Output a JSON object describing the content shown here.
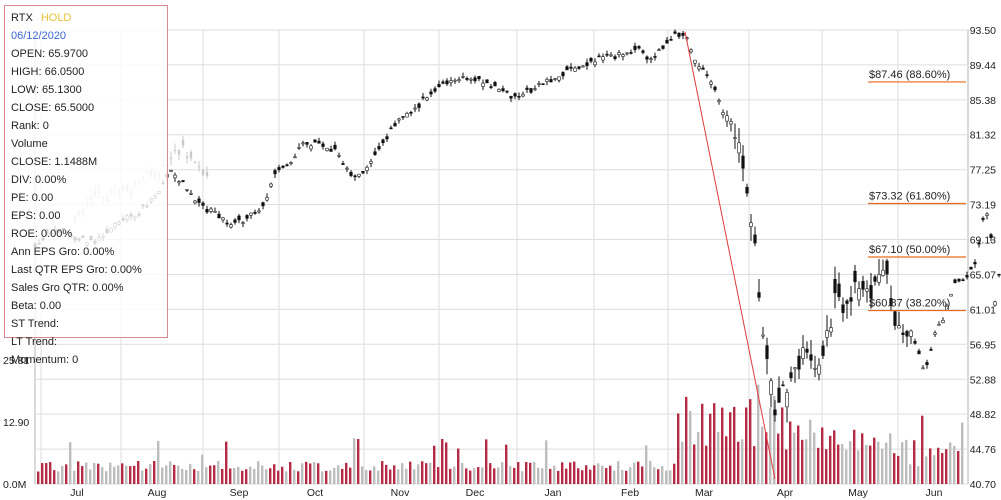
{
  "info_panel": {
    "symbol": "RTX",
    "rating": "HOLD",
    "date": "06/12/2020",
    "lines": [
      "OPEN: 65.9700",
      "HIGH: 66.0500",
      "LOW: 65.1300",
      "CLOSE: 65.5000",
      "Rank: 0",
      "Volume",
      "CLOSE: 1.1488M",
      "DIV: 0.00%",
      "PE: 0.00",
      "EPS: 0.00",
      "ROE: 0.00%",
      "Ann EPS Gro: 0.00%",
      "Last QTR EPS Gro: 0.00%",
      "Sales Gro QTR: 0.00%",
      "Beta: 0.00",
      "ST Trend:",
      "LT Trend:",
      "Momentum: 0"
    ],
    "colors": {
      "rating": "#e8c23a",
      "date": "#3a67d8",
      "border": "#d9888f"
    }
  },
  "chart_data": {
    "type": "candlestick",
    "price_axis": {
      "ticks": [
        "93.50",
        "89.44",
        "85.38",
        "81.32",
        "77.25",
        "73.19",
        "69.13",
        "65.07",
        "61.01",
        "56.95",
        "52.88",
        "48.82",
        "44.76",
        "40.70"
      ],
      "ylim": [
        40.7,
        93.5
      ],
      "position": "right"
    },
    "volume_axis": {
      "ticks": [
        "25.81",
        "12.90",
        "0.0M"
      ],
      "ylim": [
        0,
        25.81
      ],
      "position": "left"
    },
    "x_axis": {
      "ticks": [
        "Jul",
        "Aug",
        "Sep",
        "Oct",
        "Nov",
        "Dec",
        "Jan",
        "Feb",
        "Mar",
        "Apr",
        "May",
        "Jun"
      ]
    },
    "grid": true,
    "price_series": [
      [
        0,
        68.2
      ],
      [
        20,
        70.5
      ],
      [
        40,
        69.3
      ],
      [
        60,
        68.7
      ],
      [
        80,
        71.2
      ],
      [
        100,
        71.8
      ],
      [
        120,
        74.2
      ],
      [
        135,
        77.1
      ],
      [
        150,
        75.6
      ],
      [
        165,
        73.0
      ],
      [
        180,
        72.2
      ],
      [
        195,
        70.8
      ],
      [
        210,
        71.5
      ],
      [
        225,
        72.5
      ],
      [
        240,
        76.5
      ],
      [
        255,
        78.2
      ],
      [
        270,
        80.6
      ],
      [
        285,
        80.0
      ],
      [
        300,
        79.6
      ],
      [
        315,
        76.5
      ],
      [
        330,
        77.2
      ],
      [
        345,
        79.6
      ],
      [
        360,
        82.5
      ],
      [
        375,
        83.8
      ],
      [
        390,
        85.5
      ],
      [
        405,
        87.0
      ],
      [
        420,
        87.7
      ],
      [
        435,
        88.0
      ],
      [
        450,
        87.6
      ],
      [
        465,
        86.6
      ],
      [
        480,
        85.6
      ],
      [
        495,
        86.5
      ],
      [
        510,
        87.3
      ],
      [
        525,
        88.1
      ],
      [
        540,
        89.1
      ],
      [
        555,
        89.8
      ],
      [
        570,
        90.3
      ],
      [
        585,
        90.6
      ],
      [
        600,
        91.4
      ],
      [
        615,
        90.1
      ],
      [
        630,
        91.4
      ],
      [
        640,
        92.8
      ],
      [
        650,
        93.3
      ],
      [
        660,
        90.2
      ],
      [
        670,
        88.6
      ],
      [
        685,
        85.2
      ],
      [
        700,
        80.5
      ],
      [
        710,
        77.5
      ],
      [
        720,
        67.5
      ],
      [
        730,
        56.5
      ],
      [
        740,
        48.5
      ],
      [
        750,
        52.3
      ],
      [
        760,
        53.8
      ],
      [
        770,
        56.6
      ],
      [
        780,
        54.5
      ],
      [
        790,
        56.7
      ],
      [
        800,
        62.5
      ],
      [
        810,
        61.1
      ],
      [
        820,
        63.8
      ],
      [
        830,
        62.3
      ],
      [
        840,
        63.6
      ],
      [
        850,
        65.5
      ],
      [
        860,
        60.4
      ],
      [
        870,
        58.5
      ],
      [
        880,
        57.4
      ],
      [
        890,
        53.8
      ],
      [
        900,
        58.5
      ],
      [
        910,
        60.4
      ],
      [
        920,
        64.2
      ],
      [
        930,
        64.8
      ],
      [
        940,
        66.1
      ],
      [
        950,
        73.1
      ],
      [
        955,
        71.5
      ],
      [
        960,
        62.2
      ],
      [
        965,
        65.5
      ]
    ],
    "ghost_series": [
      [
        40,
        72.2
      ],
      [
        60,
        73.8
      ],
      [
        80,
        74.9
      ],
      [
        100,
        75.4
      ],
      [
        110,
        77.0
      ],
      [
        120,
        76.4
      ],
      [
        130,
        77.8
      ],
      [
        145,
        79.8
      ],
      [
        160,
        78.3
      ],
      [
        170,
        76.2
      ]
    ],
    "fibonacci": [
      {
        "label": "$87.46 (88.60%)",
        "value": 87.46
      },
      {
        "label": "$73.32 (61.80%)",
        "value": 73.32
      },
      {
        "label": "$67.10 (50.00%)",
        "value": 67.1
      },
      {
        "label": "$60.87 (38.20%)",
        "value": 60.87
      }
    ],
    "trend_line": {
      "from": [
        650,
        93.3
      ],
      "to": [
        740,
        41.3
      ]
    },
    "colors": {
      "up_volume": "#b52a44",
      "down_volume": "#bdbdbd",
      "candle": "#111111",
      "ghost_candle": "#c8c8c8",
      "fib_line": "#e86a1c",
      "trend_line": "#e03b3b",
      "grid": "#dddddd"
    }
  }
}
